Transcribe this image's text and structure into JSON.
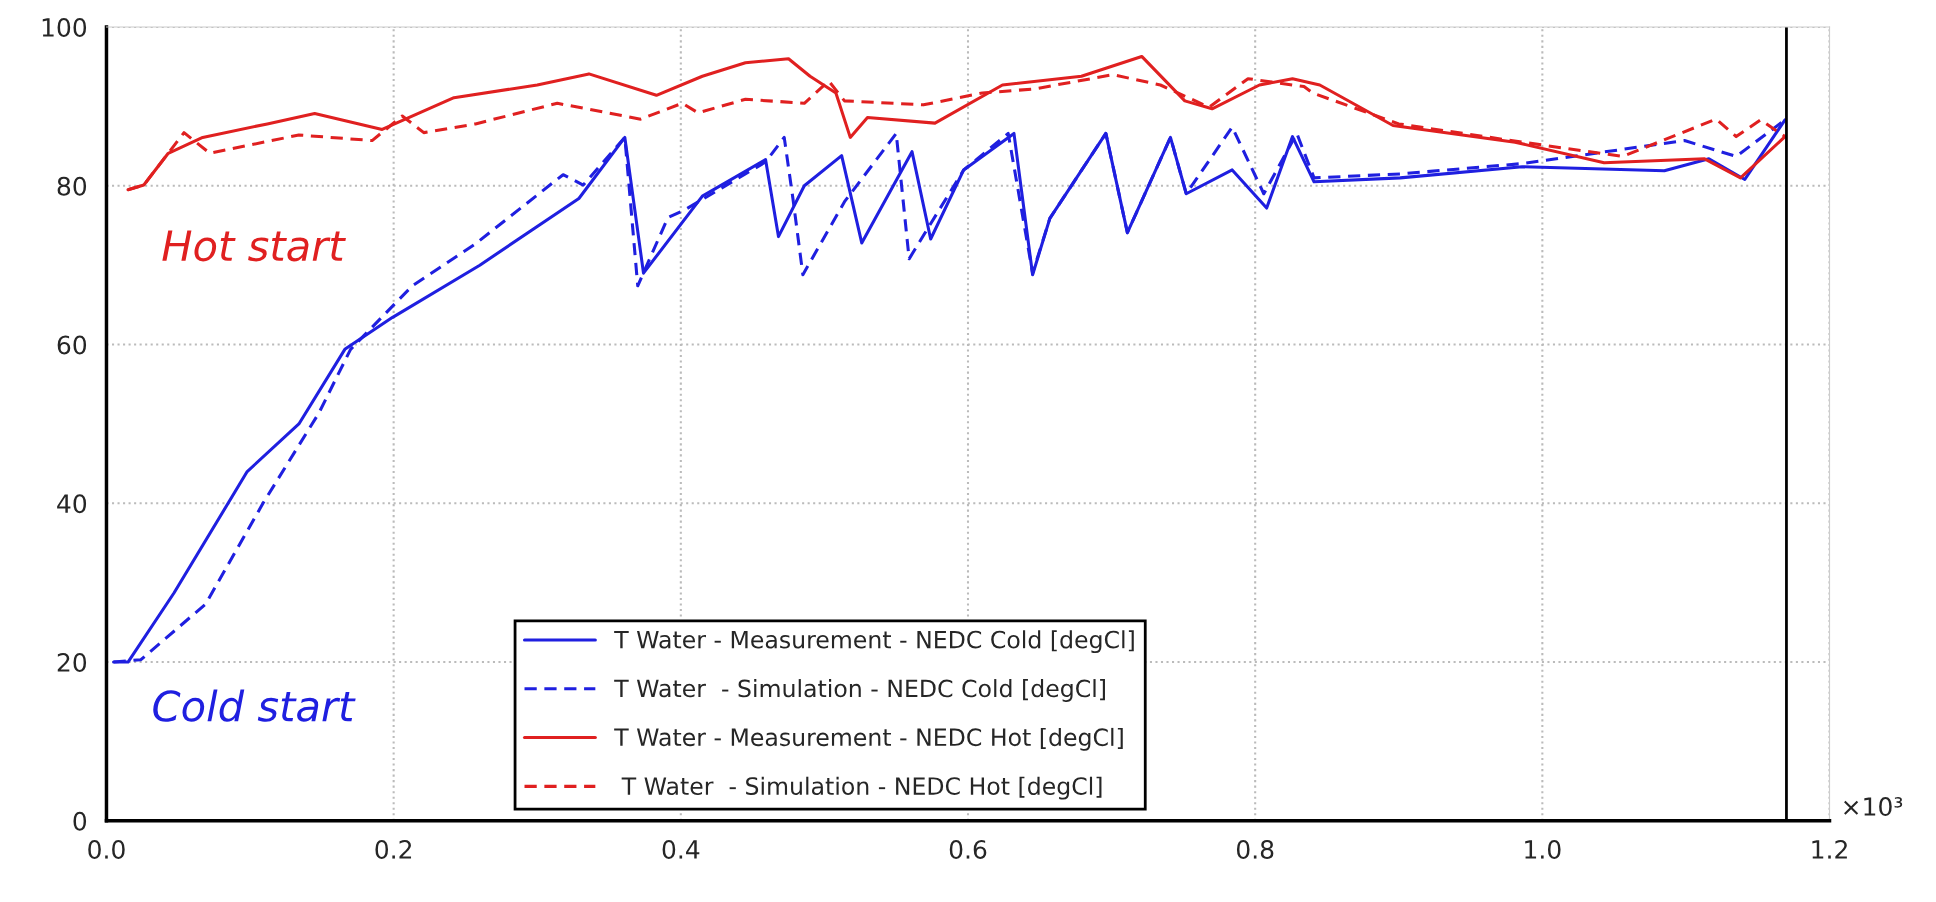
{
  "chart_data": {
    "type": "line",
    "xlabel": "×10³",
    "xlim": [
      0,
      1.2
    ],
    "ylim": [
      0,
      100
    ],
    "xticks": [
      {
        "value": 0,
        "label": "0.0"
      },
      {
        "value": 0.2,
        "label": "0.2"
      },
      {
        "value": 0.4,
        "label": "0.4"
      },
      {
        "value": 0.6,
        "label": "0.6"
      },
      {
        "value": 0.8,
        "label": "0.8"
      },
      {
        "value": 1.0,
        "label": "1.0"
      },
      {
        "value": 1.2,
        "label": "1.2"
      }
    ],
    "yticks": [
      0,
      20,
      40,
      60,
      80,
      100
    ],
    "grid": true,
    "legend": "bottom",
    "ref_lines": [
      {
        "axis": "x",
        "value": 1.17,
        "color": "#000000"
      }
    ],
    "annotations": [
      "Hot start",
      "Cold start"
    ],
    "series": [
      {
        "name": "T Water - Measurement - NEDC Cold [degCl]",
        "color": "#1f1fe0",
        "line_style": "solid",
        "x": [
          0.005,
          0.015,
          0.047,
          0.098,
          0.134,
          0.166,
          0.199,
          0.26,
          0.329,
          0.361,
          0.374,
          0.415,
          0.459,
          0.468,
          0.486,
          0.512,
          0.526,
          0.561,
          0.574,
          0.597,
          0.632,
          0.645,
          0.657,
          0.696,
          0.711,
          0.741,
          0.752,
          0.784,
          0.808,
          0.826,
          0.841,
          0.901,
          0.986,
          1.085,
          1.116,
          1.141,
          1.169
        ],
        "values": [
          20,
          20,
          28.7,
          44,
          50,
          59.4,
          63.4,
          70,
          78.4,
          86.1,
          69,
          78.7,
          83.3,
          73.6,
          80,
          83.8,
          72.8,
          84.3,
          73.3,
          82,
          86.6,
          68.8,
          75.9,
          86.6,
          74.1,
          86.1,
          79,
          82,
          77.2,
          86.2,
          80.5,
          81,
          82.4,
          81.9,
          83.4,
          80.8,
          88.3
        ]
      },
      {
        "name": "T Water  - Simulation - NEDC Cold [degCl]",
        "color": "#1f1fe0",
        "line_style": "dashed",
        "x": [
          0.005,
          0.024,
          0.069,
          0.109,
          0.148,
          0.17,
          0.213,
          0.257,
          0.318,
          0.332,
          0.361,
          0.37,
          0.391,
          0.403,
          0.459,
          0.472,
          0.478,
          0.485,
          0.514,
          0.55,
          0.559,
          0.597,
          0.628,
          0.645,
          0.657,
          0.696,
          0.711,
          0.741,
          0.752,
          0.784,
          0.806,
          0.829,
          0.841,
          0.901,
          0.986,
          1.099,
          1.135,
          1.169
        ],
        "values": [
          20,
          20.3,
          27.3,
          40,
          51.4,
          59.4,
          67.4,
          72.7,
          81.4,
          80.1,
          86.1,
          67.4,
          76,
          77,
          83,
          86.1,
          78.5,
          68.8,
          78,
          86.6,
          70.8,
          82,
          86.6,
          69,
          75.9,
          86.6,
          74.1,
          86.1,
          79,
          87.4,
          79,
          86.6,
          81,
          81.5,
          82.8,
          85.7,
          83.7,
          88.3
        ]
      },
      {
        "name": "T Water - Measurement - NEDC Hot [degCl]",
        "color": "#e02020",
        "line_style": "solid",
        "x": [
          0.015,
          0.026,
          0.043,
          0.067,
          0.112,
          0.145,
          0.192,
          0.242,
          0.3,
          0.336,
          0.383,
          0.415,
          0.445,
          0.475,
          0.49,
          0.508,
          0.518,
          0.53,
          0.577,
          0.624,
          0.679,
          0.721,
          0.751,
          0.77,
          0.803,
          0.826,
          0.845,
          0.896,
          0.981,
          1.043,
          1.113,
          1.138,
          1.169
        ],
        "values": [
          79.5,
          80.1,
          84.1,
          86.1,
          87.8,
          89.1,
          87.1,
          91.1,
          92.7,
          94.1,
          91.4,
          93.8,
          95.5,
          96,
          93.8,
          91.7,
          86.1,
          88.6,
          87.9,
          92.7,
          93.8,
          96.3,
          90.7,
          89.7,
          92.7,
          93.5,
          92.7,
          87.6,
          85.5,
          82.9,
          83.4,
          81,
          86.2
        ]
      },
      {
        "name": " T Water  - Simulation - NEDC Hot [degCl]",
        "color": "#e02020",
        "line_style": "dashed",
        "x": [
          0.015,
          0.026,
          0.054,
          0.072,
          0.134,
          0.185,
          0.206,
          0.221,
          0.257,
          0.314,
          0.372,
          0.401,
          0.412,
          0.445,
          0.486,
          0.503,
          0.514,
          0.569,
          0.61,
          0.646,
          0.701,
          0.734,
          0.768,
          0.795,
          0.834,
          0.84,
          0.9,
          0.986,
          1.056,
          1.121,
          1.135,
          1.152,
          1.169
        ],
        "values": [
          79.5,
          80.1,
          86.7,
          84.1,
          86.4,
          85.7,
          88.8,
          86.7,
          87.8,
          90.4,
          88.4,
          90.4,
          89.2,
          90.9,
          90.4,
          93.2,
          90.7,
          90.2,
          91.7,
          92.2,
          94,
          92.7,
          89.9,
          93.5,
          92.5,
          91.7,
          87.8,
          85.5,
          83.7,
          88.4,
          86.2,
          88.3,
          86.2
        ]
      }
    ]
  }
}
